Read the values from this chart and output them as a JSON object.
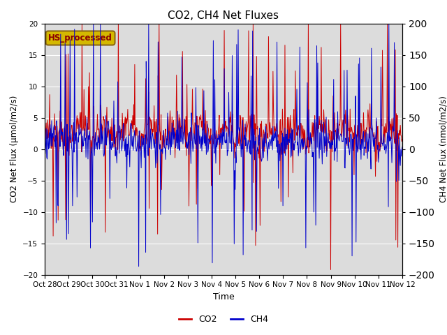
{
  "title": "CO2, CH4 Net Fluxes",
  "xlabel": "Time",
  "ylabel_left": "CO2 Net Flux (μmol/m2/s)",
  "ylabel_right": "CH4 Net Flux (nmol/m2/s)",
  "ylim_left": [
    -20,
    20
  ],
  "ylim_right": [
    -200,
    200
  ],
  "yticks_left": [
    -20,
    -15,
    -10,
    -5,
    0,
    5,
    10,
    15,
    20
  ],
  "yticks_right": [
    -200,
    -150,
    -100,
    -50,
    0,
    50,
    100,
    150,
    200
  ],
  "x_tick_labels": [
    "Oct 28",
    "Oct 29",
    "Oct 30",
    "Oct 31",
    "Nov 1",
    "Nov 2",
    "Nov 3",
    "Nov 4",
    "Nov 5",
    "Nov 6",
    "Nov 7",
    "Nov 8",
    "Nov 9",
    "Nov 10",
    "Nov 11",
    "Nov 12"
  ],
  "co2_color": "#cc0000",
  "ch4_color": "#0000cc",
  "bg_color": "#dcdcdc",
  "annotation_text": "HS_processed",
  "annotation_bg": "#d4b800",
  "annotation_border": "#8b6914",
  "legend_co2": "CO2",
  "legend_ch4": "CH4",
  "seed": 42,
  "n_days": 15,
  "pts_per_day": 48
}
